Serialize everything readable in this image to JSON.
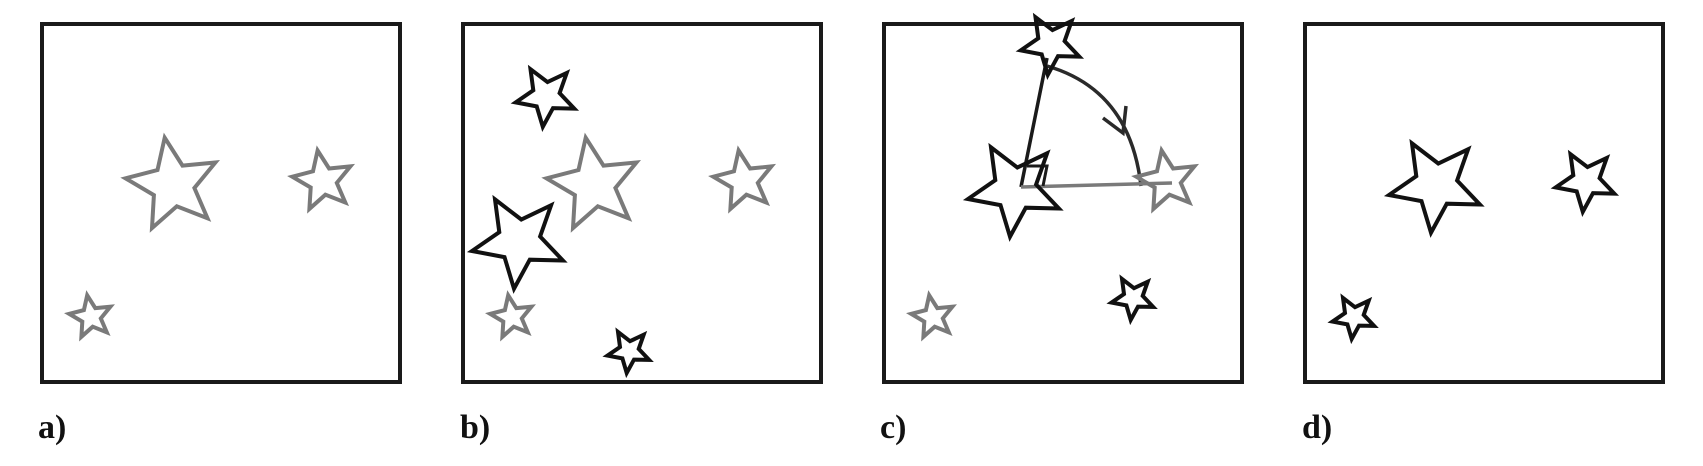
{
  "colors": {
    "background": "#ffffff",
    "frame": "#1a1a1a",
    "star_dark": "#111111",
    "star_gray": "#7a7a7a",
    "line_dark": "#1a1a1a",
    "line_gray": "#7a7a7a"
  },
  "panels": [
    {
      "label": "a)",
      "stars": [
        {
          "tone": "gray",
          "scale": "large"
        },
        {
          "tone": "gray",
          "scale": "medium"
        },
        {
          "tone": "gray",
          "scale": "small"
        }
      ]
    },
    {
      "label": "b)",
      "stars": [
        {
          "tone": "gray",
          "scale": "large"
        },
        {
          "tone": "gray",
          "scale": "medium"
        },
        {
          "tone": "gray",
          "scale": "small"
        },
        {
          "tone": "dark",
          "scale": "large"
        },
        {
          "tone": "dark",
          "scale": "medium"
        },
        {
          "tone": "dark",
          "scale": "small"
        }
      ]
    },
    {
      "label": "c)",
      "stars": [
        {
          "tone": "dark",
          "scale": "large"
        },
        {
          "tone": "dark",
          "scale": "medium"
        },
        {
          "tone": "gray",
          "scale": "medium"
        },
        {
          "tone": "dark",
          "scale": "small"
        },
        {
          "tone": "gray",
          "scale": "small"
        }
      ],
      "annotations": [
        "dark-vector-line",
        "gray-vector-line",
        "right-angle-marker",
        "rotation-arc",
        "rotation-arrowhead"
      ]
    },
    {
      "label": "d)",
      "stars": [
        {
          "tone": "dark",
          "scale": "large"
        },
        {
          "tone": "dark",
          "scale": "medium"
        },
        {
          "tone": "dark",
          "scale": "small"
        }
      ]
    }
  ]
}
